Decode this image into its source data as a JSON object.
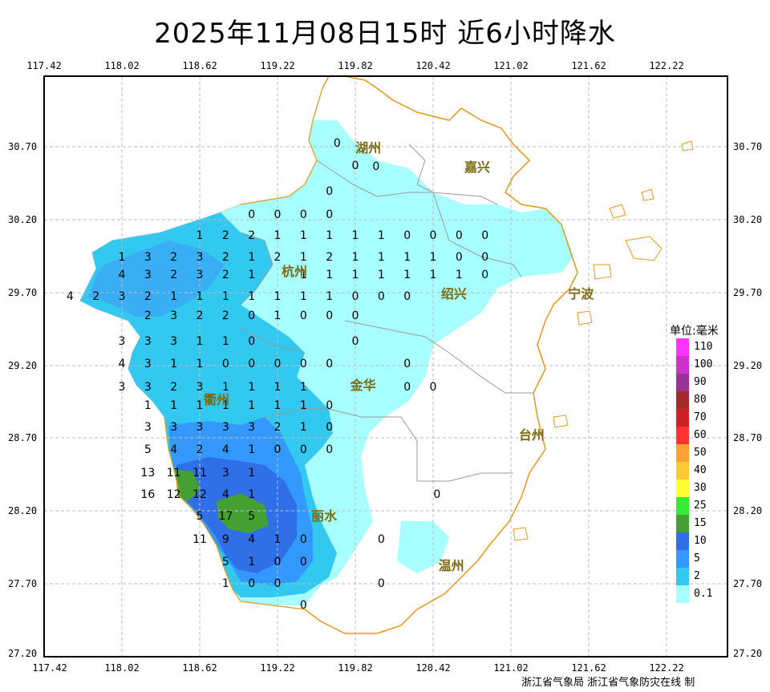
{
  "title": "2025年11月08日15时  近6小时降水",
  "x_ticks": [
    "117.42",
    "118.02",
    "118.62",
    "119.22",
    "119.82",
    "120.42",
    "121.02",
    "121.62",
    "122.22"
  ],
  "y_ticks": [
    "30.70",
    "30.20",
    "29.70",
    "29.20",
    "28.70",
    "28.20",
    "27.70",
    "27.20"
  ],
  "legend": {
    "title": "单位:毫米",
    "items": [
      {
        "label": "110",
        "color": "#ff33ff"
      },
      {
        "label": "100",
        "color": "#cc33cc"
      },
      {
        "label": "90",
        "color": "#993399"
      },
      {
        "label": "80",
        "color": "#a52a2a"
      },
      {
        "label": "70",
        "color": "#cc2222"
      },
      {
        "label": "60",
        "color": "#ff3333"
      },
      {
        "label": "50",
        "color": "#ffa033"
      },
      {
        "label": "40",
        "color": "#ffc933"
      },
      {
        "label": "30",
        "color": "#ffff33"
      },
      {
        "label": "25",
        "color": "#33ee33"
      },
      {
        "label": "15",
        "color": "#44a033"
      },
      {
        "label": "10",
        "color": "#2f6fe8"
      },
      {
        "label": "5",
        "color": "#3399ff"
      },
      {
        "label": "2",
        "color": "#33c8f0"
      },
      {
        "label": "0.1",
        "color": "#a8ffff"
      }
    ]
  },
  "cities": [
    {
      "name": "湖州",
      "lon": 119.92,
      "lat": 30.7
    },
    {
      "name": "嘉兴",
      "lon": 120.76,
      "lat": 30.57
    },
    {
      "name": "杭州",
      "lon": 119.35,
      "lat": 29.85
    },
    {
      "name": "绍兴",
      "lon": 120.58,
      "lat": 29.7
    },
    {
      "name": "宁波",
      "lon": 121.56,
      "lat": 29.7
    },
    {
      "name": "金华",
      "lon": 119.88,
      "lat": 29.07
    },
    {
      "name": "衢州",
      "lon": 118.75,
      "lat": 28.97
    },
    {
      "name": "台州",
      "lon": 121.18,
      "lat": 28.73
    },
    {
      "name": "丽水",
      "lon": 119.58,
      "lat": 28.17
    },
    {
      "name": "温州",
      "lon": 120.56,
      "lat": 27.83
    }
  ],
  "station_values": [
    {
      "v": "0",
      "lon": 119.68,
      "lat": 30.72
    },
    {
      "v": "0",
      "lon": 119.82,
      "lat": 30.57
    },
    {
      "v": "0",
      "lon": 119.98,
      "lat": 30.56
    },
    {
      "v": "0",
      "lon": 119.62,
      "lat": 30.39
    },
    {
      "v": "0",
      "lon": 119.02,
      "lat": 30.23
    },
    {
      "v": "0",
      "lon": 119.22,
      "lat": 30.23
    },
    {
      "v": "0",
      "lon": 119.42,
      "lat": 30.23
    },
    {
      "v": "0",
      "lon": 119.62,
      "lat": 30.23
    },
    {
      "v": "1",
      "lon": 118.62,
      "lat": 30.09
    },
    {
      "v": "2",
      "lon": 118.82,
      "lat": 30.09
    },
    {
      "v": "2",
      "lon": 119.02,
      "lat": 30.09
    },
    {
      "v": "1",
      "lon": 119.22,
      "lat": 30.09
    },
    {
      "v": "1",
      "lon": 119.42,
      "lat": 30.09
    },
    {
      "v": "1",
      "lon": 119.62,
      "lat": 30.09
    },
    {
      "v": "1",
      "lon": 119.82,
      "lat": 30.09
    },
    {
      "v": "1",
      "lon": 120.02,
      "lat": 30.09
    },
    {
      "v": "0",
      "lon": 120.22,
      "lat": 30.09
    },
    {
      "v": "0",
      "lon": 120.42,
      "lat": 30.09
    },
    {
      "v": "0",
      "lon": 120.62,
      "lat": 30.09
    },
    {
      "v": "0",
      "lon": 120.82,
      "lat": 30.09
    },
    {
      "v": "1",
      "lon": 118.02,
      "lat": 29.94
    },
    {
      "v": "3",
      "lon": 118.22,
      "lat": 29.94
    },
    {
      "v": "2",
      "lon": 118.42,
      "lat": 29.94
    },
    {
      "v": "3",
      "lon": 118.62,
      "lat": 29.94
    },
    {
      "v": "2",
      "lon": 118.82,
      "lat": 29.94
    },
    {
      "v": "1",
      "lon": 119.02,
      "lat": 29.94
    },
    {
      "v": "2",
      "lon": 119.22,
      "lat": 29.94
    },
    {
      "v": "1",
      "lon": 119.42,
      "lat": 29.94
    },
    {
      "v": "2",
      "lon": 119.62,
      "lat": 29.94
    },
    {
      "v": "1",
      "lon": 119.82,
      "lat": 29.94
    },
    {
      "v": "1",
      "lon": 120.02,
      "lat": 29.94
    },
    {
      "v": "1",
      "lon": 120.22,
      "lat": 29.94
    },
    {
      "v": "1",
      "lon": 120.42,
      "lat": 29.94
    },
    {
      "v": "0",
      "lon": 120.62,
      "lat": 29.94
    },
    {
      "v": "0",
      "lon": 120.82,
      "lat": 29.94
    },
    {
      "v": "4",
      "lon": 118.02,
      "lat": 29.82
    },
    {
      "v": "3",
      "lon": 118.22,
      "lat": 29.82
    },
    {
      "v": "2",
      "lon": 118.42,
      "lat": 29.82
    },
    {
      "v": "3",
      "lon": 118.62,
      "lat": 29.82
    },
    {
      "v": "2",
      "lon": 118.82,
      "lat": 29.82
    },
    {
      "v": "1",
      "lon": 119.02,
      "lat": 29.82
    },
    {
      "v": "1",
      "lon": 119.42,
      "lat": 29.82
    },
    {
      "v": "1",
      "lon": 119.62,
      "lat": 29.82
    },
    {
      "v": "1",
      "lon": 119.82,
      "lat": 29.82
    },
    {
      "v": "1",
      "lon": 120.02,
      "lat": 29.82
    },
    {
      "v": "1",
      "lon": 120.22,
      "lat": 29.82
    },
    {
      "v": "1",
      "lon": 120.42,
      "lat": 29.82
    },
    {
      "v": "1",
      "lon": 120.62,
      "lat": 29.82
    },
    {
      "v": "0",
      "lon": 120.82,
      "lat": 29.82
    },
    {
      "v": "4",
      "lon": 117.62,
      "lat": 29.67
    },
    {
      "v": "2",
      "lon": 117.82,
      "lat": 29.67
    },
    {
      "v": "3",
      "lon": 118.02,
      "lat": 29.67
    },
    {
      "v": "2",
      "lon": 118.22,
      "lat": 29.67
    },
    {
      "v": "1",
      "lon": 118.42,
      "lat": 29.67
    },
    {
      "v": "1",
      "lon": 118.62,
      "lat": 29.67
    },
    {
      "v": "1",
      "lon": 118.82,
      "lat": 29.67
    },
    {
      "v": "1",
      "lon": 119.02,
      "lat": 29.67
    },
    {
      "v": "1",
      "lon": 119.22,
      "lat": 29.67
    },
    {
      "v": "1",
      "lon": 119.42,
      "lat": 29.67
    },
    {
      "v": "1",
      "lon": 119.62,
      "lat": 29.67
    },
    {
      "v": "0",
      "lon": 119.82,
      "lat": 29.67
    },
    {
      "v": "0",
      "lon": 120.02,
      "lat": 29.67
    },
    {
      "v": "0",
      "lon": 120.22,
      "lat": 29.67
    },
    {
      "v": "2",
      "lon": 118.22,
      "lat": 29.54
    },
    {
      "v": "3",
      "lon": 118.42,
      "lat": 29.54
    },
    {
      "v": "2",
      "lon": 118.62,
      "lat": 29.54
    },
    {
      "v": "2",
      "lon": 118.82,
      "lat": 29.54
    },
    {
      "v": "0",
      "lon": 119.02,
      "lat": 29.54
    },
    {
      "v": "1",
      "lon": 119.22,
      "lat": 29.54
    },
    {
      "v": "0",
      "lon": 119.42,
      "lat": 29.54
    },
    {
      "v": "0",
      "lon": 119.62,
      "lat": 29.54
    },
    {
      "v": "0",
      "lon": 119.82,
      "lat": 29.54
    },
    {
      "v": "3",
      "lon": 118.02,
      "lat": 29.36
    },
    {
      "v": "3",
      "lon": 118.22,
      "lat": 29.36
    },
    {
      "v": "3",
      "lon": 118.42,
      "lat": 29.36
    },
    {
      "v": "1",
      "lon": 118.62,
      "lat": 29.36
    },
    {
      "v": "1",
      "lon": 118.82,
      "lat": 29.36
    },
    {
      "v": "0",
      "lon": 119.02,
      "lat": 29.36
    },
    {
      "v": "0",
      "lon": 119.82,
      "lat": 29.36
    },
    {
      "v": "4",
      "lon": 118.02,
      "lat": 29.21
    },
    {
      "v": "3",
      "lon": 118.22,
      "lat": 29.21
    },
    {
      "v": "1",
      "lon": 118.42,
      "lat": 29.21
    },
    {
      "v": "1",
      "lon": 118.62,
      "lat": 29.21
    },
    {
      "v": "0",
      "lon": 118.82,
      "lat": 29.21
    },
    {
      "v": "0",
      "lon": 119.02,
      "lat": 29.21
    },
    {
      "v": "0",
      "lon": 119.22,
      "lat": 29.21
    },
    {
      "v": "0",
      "lon": 119.42,
      "lat": 29.21
    },
    {
      "v": "0",
      "lon": 119.62,
      "lat": 29.21
    },
    {
      "v": "0",
      "lon": 120.22,
      "lat": 29.21
    },
    {
      "v": "3",
      "lon": 118.02,
      "lat": 29.05
    },
    {
      "v": "3",
      "lon": 118.22,
      "lat": 29.05
    },
    {
      "v": "2",
      "lon": 118.42,
      "lat": 29.05
    },
    {
      "v": "3",
      "lon": 118.62,
      "lat": 29.05
    },
    {
      "v": "1",
      "lon": 118.82,
      "lat": 29.05
    },
    {
      "v": "1",
      "lon": 119.02,
      "lat": 29.05
    },
    {
      "v": "1",
      "lon": 119.22,
      "lat": 29.05
    },
    {
      "v": "1",
      "lon": 119.42,
      "lat": 29.05
    },
    {
      "v": "0",
      "lon": 120.22,
      "lat": 29.05
    },
    {
      "v": "0",
      "lon": 120.42,
      "lat": 29.05
    },
    {
      "v": "1",
      "lon": 118.22,
      "lat": 28.92
    },
    {
      "v": "1",
      "lon": 118.42,
      "lat": 28.92
    },
    {
      "v": "1",
      "lon": 118.62,
      "lat": 28.92
    },
    {
      "v": "1",
      "lon": 118.82,
      "lat": 28.92
    },
    {
      "v": "1",
      "lon": 119.02,
      "lat": 28.92
    },
    {
      "v": "1",
      "lon": 119.22,
      "lat": 28.92
    },
    {
      "v": "1",
      "lon": 119.42,
      "lat": 28.92
    },
    {
      "v": "0",
      "lon": 119.62,
      "lat": 28.92
    },
    {
      "v": "3",
      "lon": 118.22,
      "lat": 28.77
    },
    {
      "v": "3",
      "lon": 118.42,
      "lat": 28.77
    },
    {
      "v": "3",
      "lon": 118.62,
      "lat": 28.77
    },
    {
      "v": "3",
      "lon": 118.82,
      "lat": 28.77
    },
    {
      "v": "3",
      "lon": 119.02,
      "lat": 28.77
    },
    {
      "v": "2",
      "lon": 119.22,
      "lat": 28.77
    },
    {
      "v": "1",
      "lon": 119.42,
      "lat": 28.77
    },
    {
      "v": "0",
      "lon": 119.62,
      "lat": 28.77
    },
    {
      "v": "5",
      "lon": 118.22,
      "lat": 28.62
    },
    {
      "v": "4",
      "lon": 118.42,
      "lat": 28.62
    },
    {
      "v": "2",
      "lon": 118.62,
      "lat": 28.62
    },
    {
      "v": "4",
      "lon": 118.82,
      "lat": 28.62
    },
    {
      "v": "1",
      "lon": 119.02,
      "lat": 28.62
    },
    {
      "v": "0",
      "lon": 119.22,
      "lat": 28.62
    },
    {
      "v": "0",
      "lon": 119.42,
      "lat": 28.62
    },
    {
      "v": "0",
      "lon": 119.62,
      "lat": 28.62
    },
    {
      "v": "13",
      "lon": 118.22,
      "lat": 28.46
    },
    {
      "v": "11",
      "lon": 118.42,
      "lat": 28.46
    },
    {
      "v": "11",
      "lon": 118.62,
      "lat": 28.46
    },
    {
      "v": "3",
      "lon": 118.82,
      "lat": 28.46
    },
    {
      "v": "1",
      "lon": 119.02,
      "lat": 28.46
    },
    {
      "v": "16",
      "lon": 118.22,
      "lat": 28.31
    },
    {
      "v": "12",
      "lon": 118.42,
      "lat": 28.31
    },
    {
      "v": "12",
      "lon": 118.62,
      "lat": 28.31
    },
    {
      "v": "4",
      "lon": 118.82,
      "lat": 28.31
    },
    {
      "v": "1",
      "lon": 119.02,
      "lat": 28.31
    },
    {
      "v": "0",
      "lon": 120.45,
      "lat": 28.31
    },
    {
      "v": "5",
      "lon": 118.62,
      "lat": 28.16
    },
    {
      "v": "17",
      "lon": 118.82,
      "lat": 28.16
    },
    {
      "v": "5",
      "lon": 119.02,
      "lat": 28.16
    },
    {
      "v": "11",
      "lon": 118.62,
      "lat": 28.0
    },
    {
      "v": "9",
      "lon": 118.82,
      "lat": 28.0
    },
    {
      "v": "4",
      "lon": 119.02,
      "lat": 28.0
    },
    {
      "v": "1",
      "lon": 119.22,
      "lat": 28.0
    },
    {
      "v": "0",
      "lon": 119.42,
      "lat": 28.0
    },
    {
      "v": "0",
      "lon": 120.02,
      "lat": 28.0
    },
    {
      "v": "5",
      "lon": 118.82,
      "lat": 27.85
    },
    {
      "v": "1",
      "lon": 119.02,
      "lat": 27.85
    },
    {
      "v": "0",
      "lon": 119.22,
      "lat": 27.85
    },
    {
      "v": "0",
      "lon": 119.42,
      "lat": 27.85
    },
    {
      "v": "1",
      "lon": 118.82,
      "lat": 27.7
    },
    {
      "v": "0",
      "lon": 119.02,
      "lat": 27.7
    },
    {
      "v": "0",
      "lon": 119.22,
      "lat": 27.7
    },
    {
      "v": "0",
      "lon": 120.02,
      "lat": 27.7
    },
    {
      "v": "0",
      "lon": 119.42,
      "lat": 27.55
    }
  ],
  "footer": "浙江省气象局 浙江省气象防灾在线 制"
}
